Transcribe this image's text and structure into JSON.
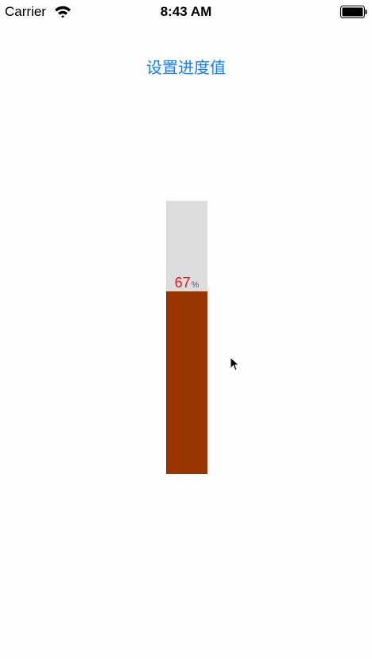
{
  "status_bar": {
    "carrier": "Carrier",
    "time": "8:43 AM"
  },
  "actions": {
    "set_progress_label": "设置进度值"
  },
  "progress": {
    "value": "67",
    "unit": "%",
    "fraction": 0.67
  },
  "colors": {
    "link": "#147efb",
    "track": "#dddddd",
    "fill": "#9a3400",
    "value_text": "#e8141a"
  },
  "icons": [
    "wifi-icon",
    "battery-icon",
    "cursor-icon"
  ]
}
